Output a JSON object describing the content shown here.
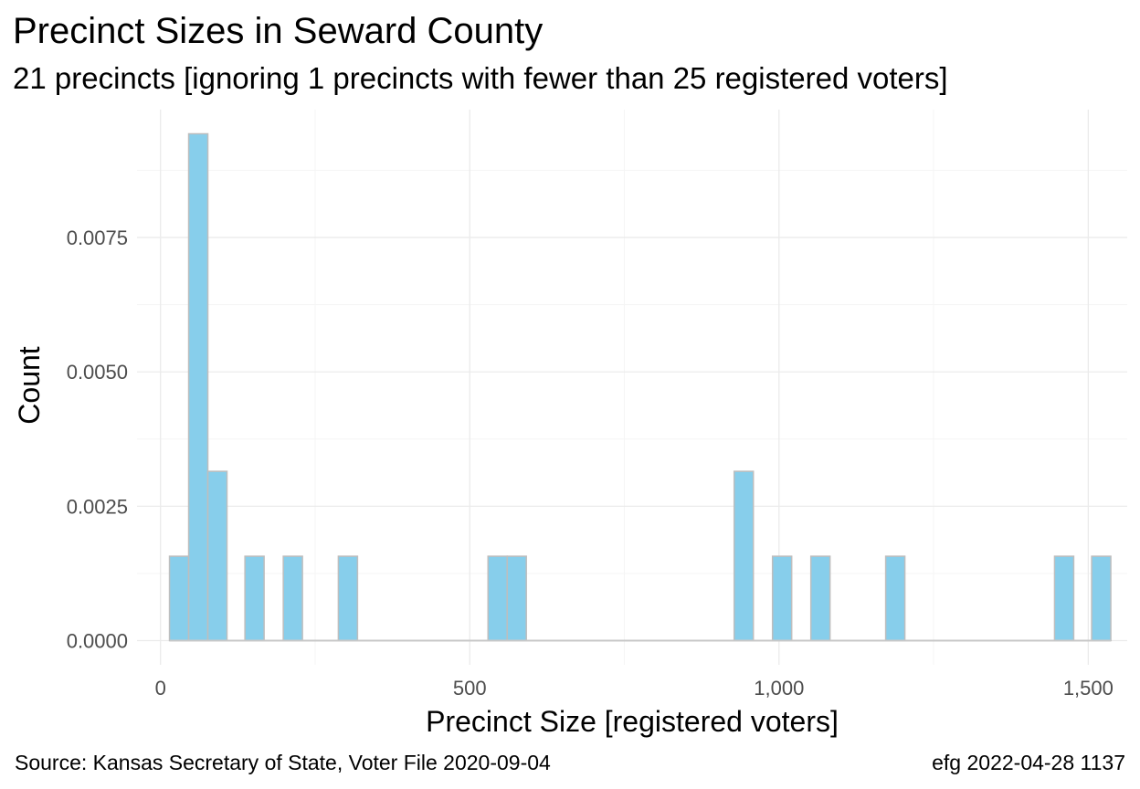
{
  "title": "Precinct Sizes in Seward County",
  "subtitle": "21 precincts [ignoring 1 precincts with fewer than 25 registered voters]",
  "caption_left": "Source:  Kansas Secretary of State, Voter File  2020-09-04",
  "caption_right": "efg 2022-04-28 1137",
  "colors": {
    "bar_fill": "#87CEEB",
    "bar_stroke": "#bebebe",
    "grid_major": "#ebebeb",
    "grid_minor": "#f5f5f5",
    "baseline": "#c8c8c8"
  },
  "chart_data": {
    "type": "bar",
    "title": "Precinct Sizes in Seward County",
    "subtitle": "21 precincts [ignoring 1 precincts with fewer than 25 registered voters]",
    "xlabel": "Precinct Size [registered voters]",
    "ylabel": "Count",
    "xlim": [
      -38,
      1563
    ],
    "ylim": [
      -0.00045,
      0.00988
    ],
    "x_ticks": [
      0,
      500,
      1000,
      1500
    ],
    "x_tick_labels": [
      "0",
      "500",
      "1,000",
      "1,500"
    ],
    "y_ticks": [
      0,
      0.0025,
      0.005,
      0.0075
    ],
    "y_tick_labels": [
      "0.0000",
      "0.0025",
      "0.0050",
      "0.0075"
    ],
    "grid": true,
    "bin_width": 31,
    "bins": [
      {
        "x": 30,
        "value": 0.00157
      },
      {
        "x": 61,
        "value": 0.00943
      },
      {
        "x": 92,
        "value": 0.00315
      },
      {
        "x": 152,
        "value": 0.00157
      },
      {
        "x": 214,
        "value": 0.00157
      },
      {
        "x": 303,
        "value": 0.00157
      },
      {
        "x": 545,
        "value": 0.00157
      },
      {
        "x": 576,
        "value": 0.00157
      },
      {
        "x": 943,
        "value": 0.00315
      },
      {
        "x": 1005,
        "value": 0.00157
      },
      {
        "x": 1067,
        "value": 0.00157
      },
      {
        "x": 1188,
        "value": 0.00157
      },
      {
        "x": 1461,
        "value": 0.00157
      },
      {
        "x": 1521,
        "value": 0.00157
      }
    ]
  }
}
